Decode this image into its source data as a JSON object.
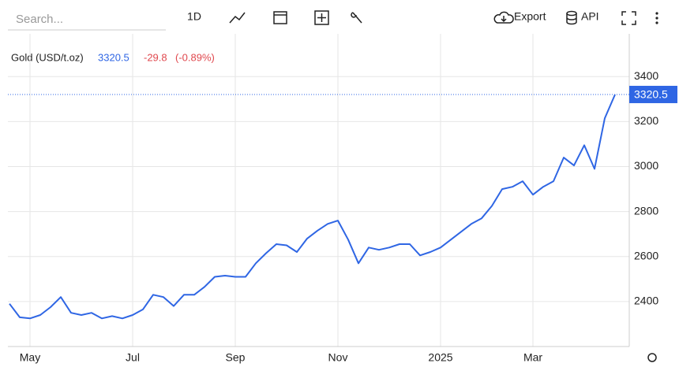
{
  "toolbar": {
    "search_placeholder": "Search...",
    "interval": "1D",
    "export": "Export",
    "api": "API"
  },
  "chart_data": {
    "type": "line",
    "title": "Gold (USD/t.oz)",
    "change": "-29.8",
    "change_pct": "(-0.89%)",
    "color": "#2f66e4",
    "categories": [
      null,
      null,
      "May",
      null,
      null,
      null,
      null,
      null,
      null,
      null,
      null,
      null,
      "Jul",
      null,
      null,
      null,
      null,
      null,
      null,
      null,
      null,
      null,
      "Sep",
      null,
      null,
      null,
      null,
      null,
      null,
      null,
      null,
      null,
      "Nov",
      null,
      null,
      null,
      null,
      null,
      null,
      null,
      null,
      null,
      "2025",
      null,
      null,
      null,
      null,
      null,
      null,
      null,
      null,
      "Mar",
      null,
      null,
      null,
      null,
      null,
      null,
      null,
      null
    ],
    "values": [
      2390,
      2330,
      2325,
      2340,
      2375,
      2420,
      2350,
      2340,
      2350,
      2325,
      2335,
      2325,
      2340,
      2365,
      2430,
      2420,
      2380,
      2430,
      2430,
      2465,
      2510,
      2515,
      2510,
      2510,
      2570,
      2615,
      2655,
      2650,
      2620,
      2680,
      2715,
      2745,
      2760,
      2675,
      2570,
      2640,
      2630,
      2640,
      2655,
      2655,
      2605,
      2620,
      2640,
      2675,
      2710,
      2745,
      2770,
      2825,
      2900,
      2910,
      2935,
      2875,
      2910,
      2935,
      3040,
      3005,
      3095,
      2990,
      3215,
      3320.5
    ],
    "ylim": [
      2200,
      3590
    ],
    "yticks": [
      2400,
      2600,
      2800,
      3000,
      3200,
      3400
    ],
    "grid": true
  }
}
